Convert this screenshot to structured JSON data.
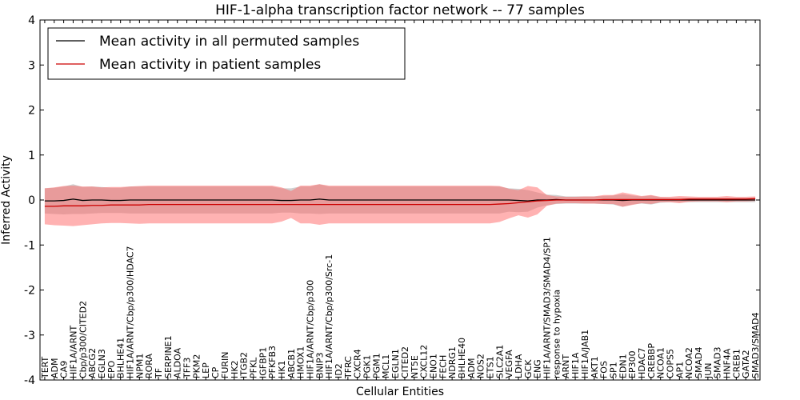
{
  "chart_data": {
    "type": "line",
    "title": "HIF-1-alpha transcription factor network -- 77 samples",
    "xlabel": "Cellular Entities",
    "ylabel": "Inferred Activity",
    "ylim": [
      -4,
      4
    ],
    "yticks": [
      -4,
      -3,
      -2,
      -1,
      0,
      1,
      2,
      3,
      4
    ],
    "legend_position": "top-left",
    "categories": [
      "TERT",
      "ADM",
      "CA9",
      "HIF1A/ARNT",
      "Cbp/p300/CITED2",
      "ABCG2",
      "EGLN3",
      "EPO",
      "BHLHE41",
      "HIF1A/ARNT/Cbp/p300/HDAC7",
      "NPM1",
      "RORA",
      "TF",
      "SERPINE1",
      "ALDOA",
      "TFF3",
      "PKM2",
      "LEP",
      "CP",
      "FURIN",
      "HK2",
      "ITGB2",
      "PFKL",
      "IGFBP1",
      "PFKFB3",
      "HK1",
      "ABCB1",
      "HMOX1",
      "HIF1A/ARNT/Cbp/p300",
      "BNIP3",
      "HIF1A/ARNT/Cbp/p300/Src-1",
      "ID2",
      "TFRC",
      "CXCR4",
      "PGK1",
      "PGM1",
      "MCL1",
      "EGLN1",
      "CITED2",
      "NT5E",
      "CXCL12",
      "ENO1",
      "FECH",
      "NDRG1",
      "BHLHE40",
      "ADM",
      "NOS2",
      "ETS1",
      "SLC2A1",
      "VEGFA",
      "LDHA",
      "GCK",
      "ENG",
      "HIF1A/ARNT/SMAD3/SMAD4/SP1",
      "response to hypoxia",
      "ARNT",
      "HIF1A",
      "HIF1A/JAB1",
      "AKT1",
      "FOS",
      "SP1",
      "EDN1",
      "EP300",
      "HDAC7",
      "CREBBP",
      "NCOA1",
      "COPS5",
      "AP1",
      "NCOA2",
      "SMAD4",
      "JUN",
      "SMAD3",
      "HNF4A",
      "CREB1",
      "GATA2",
      "SMAD3/SMAD4"
    ],
    "series": [
      {
        "name": "Mean activity in all permuted samples",
        "color": "#000000",
        "band_color": "#777777",
        "values": [
          -0.02,
          -0.02,
          -0.01,
          0.02,
          -0.01,
          0.0,
          0.0,
          -0.01,
          -0.01,
          0.0,
          0.0,
          0.0,
          0.0,
          0.0,
          0.0,
          0.0,
          0.0,
          0.0,
          0.0,
          0.0,
          0.0,
          0.0,
          0.0,
          0.0,
          0.0,
          -0.01,
          -0.01,
          0.0,
          0.0,
          0.02,
          0.0,
          0.0,
          0.0,
          0.0,
          0.0,
          0.0,
          0.0,
          0.0,
          0.0,
          0.0,
          0.0,
          0.0,
          0.0,
          0.0,
          0.0,
          0.0,
          0.0,
          0.0,
          0.0,
          0.0,
          -0.01,
          -0.02,
          0.0,
          0.0,
          0.01,
          0.0,
          0.0,
          0.0,
          0.0,
          0.0,
          0.0,
          -0.01,
          0.0,
          0.0,
          0.0,
          0.0,
          0.0,
          0.0,
          0.0,
          0.0,
          0.0,
          0.0,
          0.0,
          0.0,
          0.0,
          0.0
        ],
        "std": [
          0.28,
          0.29,
          0.31,
          0.33,
          0.3,
          0.3,
          0.29,
          0.28,
          0.28,
          0.3,
          0.3,
          0.3,
          0.3,
          0.3,
          0.3,
          0.3,
          0.3,
          0.3,
          0.3,
          0.3,
          0.3,
          0.3,
          0.3,
          0.3,
          0.3,
          0.27,
          0.27,
          0.3,
          0.3,
          0.33,
          0.3,
          0.3,
          0.3,
          0.3,
          0.3,
          0.3,
          0.3,
          0.3,
          0.3,
          0.3,
          0.3,
          0.3,
          0.3,
          0.3,
          0.3,
          0.3,
          0.3,
          0.3,
          0.3,
          0.26,
          0.26,
          0.24,
          0.17,
          0.12,
          0.1,
          0.08,
          0.08,
          0.08,
          0.08,
          0.09,
          0.1,
          0.14,
          0.1,
          0.08,
          0.1,
          0.06,
          0.05,
          0.05,
          0.05,
          0.05,
          0.05,
          0.05,
          0.05,
          0.05,
          0.05,
          0.05
        ]
      },
      {
        "name": "Mean activity in patient samples",
        "color": "#cc0000",
        "band_color": "#ff6666",
        "values": [
          -0.14,
          -0.14,
          -0.13,
          -0.13,
          -0.13,
          -0.12,
          -0.12,
          -0.11,
          -0.11,
          -0.11,
          -0.11,
          -0.1,
          -0.1,
          -0.1,
          -0.1,
          -0.1,
          -0.1,
          -0.1,
          -0.1,
          -0.1,
          -0.1,
          -0.1,
          -0.1,
          -0.1,
          -0.1,
          -0.1,
          -0.1,
          -0.1,
          -0.1,
          -0.1,
          -0.1,
          -0.1,
          -0.1,
          -0.1,
          -0.1,
          -0.1,
          -0.1,
          -0.1,
          -0.1,
          -0.1,
          -0.1,
          -0.1,
          -0.1,
          -0.1,
          -0.1,
          -0.1,
          -0.1,
          -0.1,
          -0.09,
          -0.08,
          -0.06,
          -0.04,
          -0.02,
          -0.01,
          0.0,
          0.0,
          0.0,
          0.0,
          0.0,
          0.01,
          0.01,
          0.01,
          0.01,
          0.01,
          0.01,
          0.01,
          0.01,
          0.01,
          0.02,
          0.02,
          0.02,
          0.02,
          0.02,
          0.02,
          0.02,
          0.03
        ],
        "std": [
          0.4,
          0.42,
          0.44,
          0.45,
          0.43,
          0.42,
          0.4,
          0.4,
          0.4,
          0.41,
          0.42,
          0.42,
          0.42,
          0.42,
          0.42,
          0.42,
          0.42,
          0.42,
          0.42,
          0.42,
          0.42,
          0.42,
          0.42,
          0.42,
          0.42,
          0.38,
          0.3,
          0.42,
          0.42,
          0.45,
          0.42,
          0.42,
          0.42,
          0.42,
          0.42,
          0.42,
          0.42,
          0.42,
          0.42,
          0.42,
          0.42,
          0.42,
          0.42,
          0.42,
          0.42,
          0.42,
          0.42,
          0.42,
          0.4,
          0.33,
          0.28,
          0.35,
          0.3,
          0.12,
          0.08,
          0.07,
          0.07,
          0.08,
          0.08,
          0.1,
          0.1,
          0.16,
          0.12,
          0.08,
          0.1,
          0.06,
          0.06,
          0.08,
          0.06,
          0.05,
          0.05,
          0.05,
          0.07,
          0.05,
          0.05,
          0.05
        ]
      }
    ]
  }
}
